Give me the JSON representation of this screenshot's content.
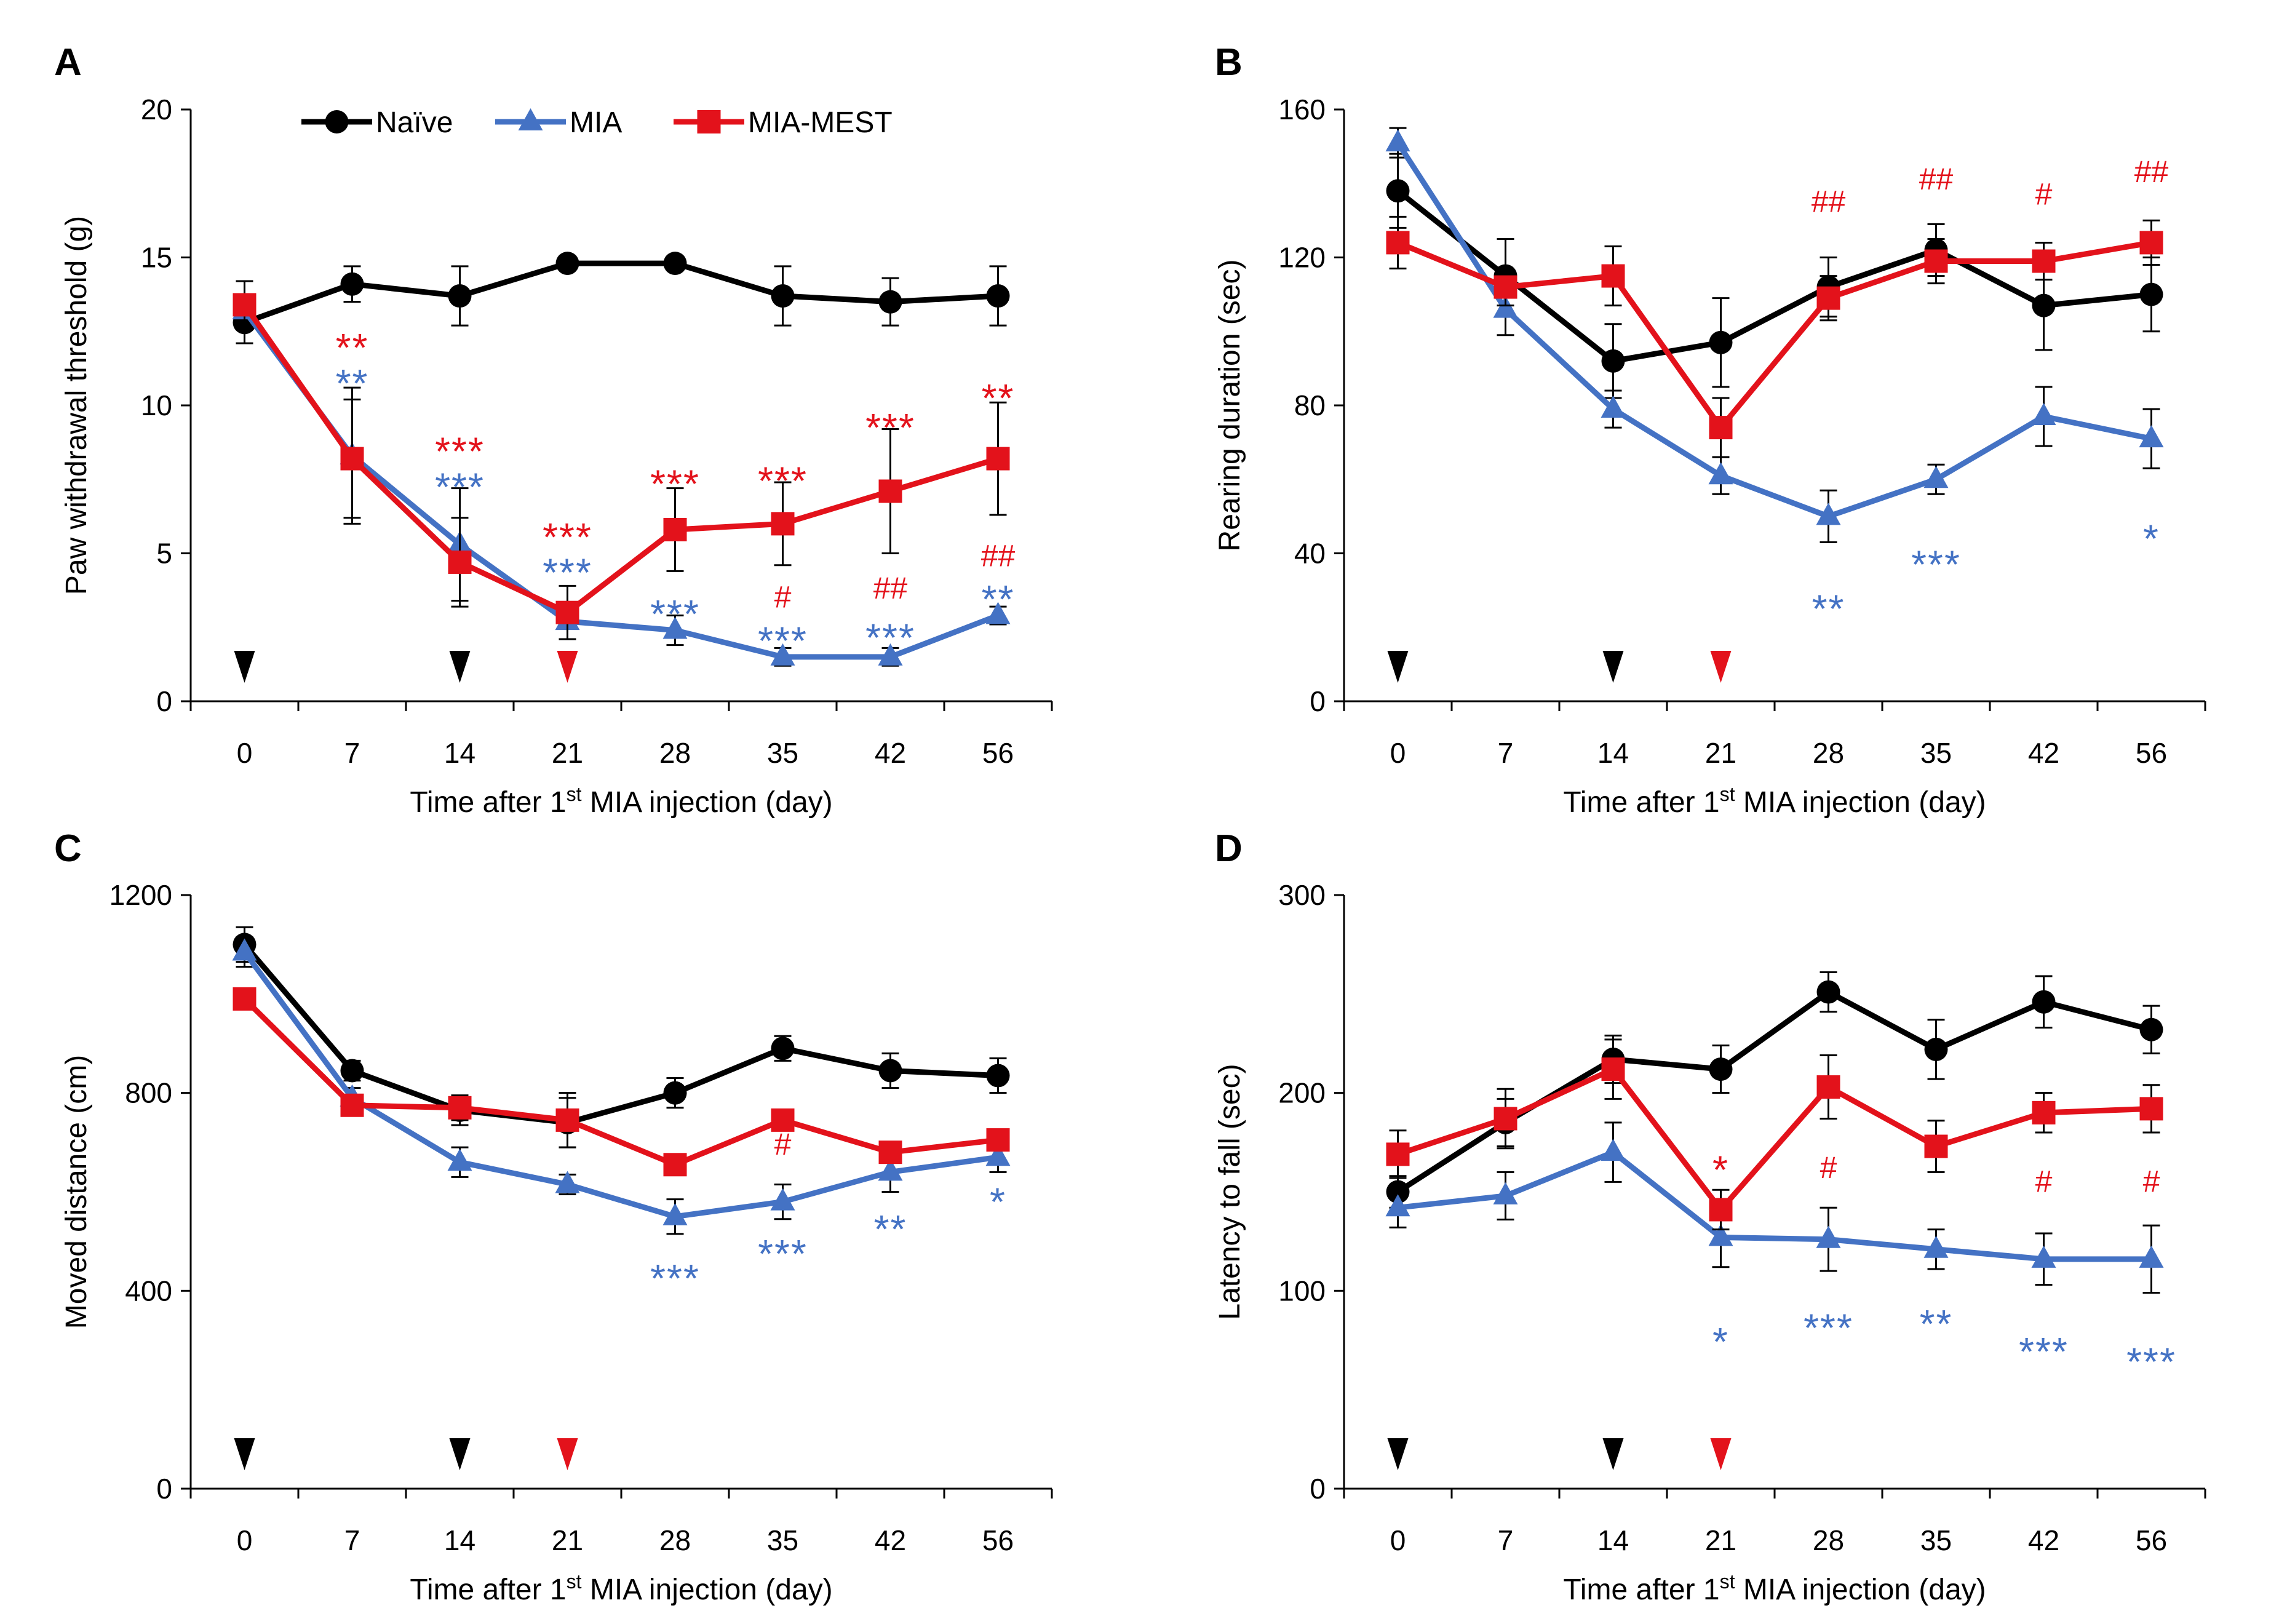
{
  "figure": {
    "legend": [
      {
        "name": "Naïve",
        "color": "#000000",
        "marker": "circle"
      },
      {
        "name": "MIA",
        "color": "#4472C4",
        "marker": "triangle"
      },
      {
        "name": "MIA-MEST",
        "color": "#E3121B",
        "marker": "square"
      }
    ],
    "colors": {
      "naive": "#000000",
      "mia": "#4472C4",
      "mest": "#E3121B"
    }
  },
  "chart_data": [
    {
      "panel": "A",
      "type": "line",
      "categories": [
        "0",
        "7",
        "14",
        "21",
        "28",
        "35",
        "42",
        "56"
      ],
      "ylabel": "Paw withdrawal threshold (g)",
      "xlabel": "Time after 1st MIA injection (day)",
      "xlabel_parts": {
        "pre": "Time after 1",
        "sup": "st",
        "post": " MIA injection (day)"
      },
      "ylim": [
        0,
        20
      ],
      "yticks": [
        0,
        5,
        10,
        15,
        20
      ],
      "show_legend": true,
      "series": [
        {
          "name": "Naïve",
          "values": [
            12.8,
            14.1,
            13.7,
            14.8,
            14.8,
            13.7,
            13.5,
            13.7
          ],
          "errors": [
            0.7,
            0.6,
            1.0,
            0.2,
            0.2,
            1.0,
            0.8,
            1.0
          ]
        },
        {
          "name": "MIA",
          "values": [
            13.2,
            8.3,
            5.3,
            2.7,
            2.4,
            1.5,
            1.5,
            2.9
          ],
          "errors": [
            0.5,
            2.3,
            1.9,
            0.6,
            0.5,
            0.3,
            0.3,
            0.3
          ]
        },
        {
          "name": "MIA-MEST",
          "values": [
            13.4,
            8.2,
            4.7,
            3.0,
            5.8,
            6.0,
            7.1,
            8.2
          ],
          "errors": [
            0.8,
            2.0,
            1.5,
            0.9,
            1.4,
            1.4,
            2.1,
            1.9
          ]
        }
      ],
      "arrowheads": [
        {
          "category": "0",
          "series": "Naïve"
        },
        {
          "category": "14",
          "series": "Naïve"
        },
        {
          "category": "21",
          "series": "MIA-MEST"
        }
      ],
      "annotations": [
        {
          "category": "7",
          "text": "**",
          "series": "MIA-MEST",
          "y": 12.2
        },
        {
          "category": "7",
          "text": "**",
          "series": "MIA",
          "y": 11.0
        },
        {
          "category": "14",
          "text": "***",
          "series": "MIA-MEST",
          "y": 8.7
        },
        {
          "category": "14",
          "text": "***",
          "series": "MIA",
          "y": 7.5
        },
        {
          "category": "21",
          "text": "***",
          "series": "MIA-MEST",
          "y": 5.8
        },
        {
          "category": "21",
          "text": "***",
          "series": "MIA",
          "y": 4.6
        },
        {
          "category": "28",
          "text": "***",
          "series": "MIA-MEST",
          "y": 7.6
        },
        {
          "category": "28",
          "text": "***",
          "series": "MIA",
          "y": 3.2
        },
        {
          "category": "35",
          "text": "***",
          "series": "MIA-MEST",
          "y": 7.7
        },
        {
          "category": "35",
          "text": "#",
          "series": "MIA-MEST",
          "y": 3.5
        },
        {
          "category": "35",
          "text": "***",
          "series": "MIA",
          "y": 2.3
        },
        {
          "category": "42",
          "text": "***",
          "series": "MIA-MEST",
          "y": 9.5
        },
        {
          "category": "42",
          "text": "##",
          "series": "MIA-MEST",
          "y": 3.8
        },
        {
          "category": "42",
          "text": "***",
          "series": "MIA",
          "y": 2.4
        },
        {
          "category": "56",
          "text": "**",
          "series": "MIA-MEST",
          "y": 10.5
        },
        {
          "category": "56",
          "text": "##",
          "series": "MIA-MEST",
          "y": 4.9
        },
        {
          "category": "56",
          "text": "**",
          "series": "MIA",
          "y": 3.7
        }
      ]
    },
    {
      "panel": "B",
      "type": "line",
      "categories": [
        "0",
        "7",
        "14",
        "21",
        "28",
        "35",
        "42",
        "56"
      ],
      "ylabel": "Rearing duration (sec)",
      "xlabel": "Time after 1st MIA injection (day)",
      "xlabel_parts": {
        "pre": "Time after 1",
        "sup": "st",
        "post": " MIA injection (day)"
      },
      "ylim": [
        0,
        160
      ],
      "yticks": [
        0,
        40,
        80,
        120,
        160
      ],
      "show_legend": false,
      "series": [
        {
          "name": "Naïve",
          "values": [
            138,
            115,
            92,
            97,
            112,
            122,
            107,
            110
          ],
          "errors": [
            10,
            10,
            10,
            12,
            8,
            7,
            12,
            10
          ]
        },
        {
          "name": "MIA",
          "values": [
            151,
            106,
            79,
            61,
            50,
            60,
            77,
            71
          ],
          "errors": [
            4,
            7,
            5,
            5,
            7,
            4,
            8,
            8
          ]
        },
        {
          "name": "MIA-MEST",
          "values": [
            124,
            112,
            115,
            74,
            109,
            119,
            119,
            124
          ],
          "errors": [
            7,
            5,
            8,
            8,
            6,
            6,
            5,
            6
          ]
        }
      ],
      "arrowheads": [
        {
          "category": "0",
          "series": "Naïve"
        },
        {
          "category": "14",
          "series": "Naïve"
        },
        {
          "category": "21",
          "series": "MIA-MEST"
        }
      ],
      "annotations": [
        {
          "category": "28",
          "text": "##",
          "series": "MIA-MEST",
          "y": 135
        },
        {
          "category": "35",
          "text": "##",
          "series": "MIA-MEST",
          "y": 141
        },
        {
          "category": "42",
          "text": "#",
          "series": "MIA-MEST",
          "y": 137
        },
        {
          "category": "56",
          "text": "##",
          "series": "MIA-MEST",
          "y": 143
        },
        {
          "category": "28",
          "text": "**",
          "series": "MIA",
          "y": 27
        },
        {
          "category": "35",
          "text": "***",
          "series": "MIA",
          "y": 39
        },
        {
          "category": "56",
          "text": "*",
          "series": "MIA",
          "y": 46
        }
      ]
    },
    {
      "panel": "C",
      "type": "line",
      "categories": [
        "0",
        "7",
        "14",
        "21",
        "28",
        "35",
        "42",
        "56"
      ],
      "ylabel": "Moved distance (cm)",
      "xlabel": "Time after 1st MIA injection (day)",
      "xlabel_parts": {
        "pre": "Time after 1",
        "sup": "st",
        "post": " MIA injection (day)"
      },
      "ylim": [
        0,
        1200
      ],
      "yticks": [
        0,
        400,
        800,
        1200
      ],
      "show_legend": false,
      "series": [
        {
          "name": "Naïve",
          "values": [
            1100,
            845,
            765,
            740,
            800,
            890,
            845,
            835
          ],
          "errors": [
            35,
            20,
            30,
            50,
            30,
            25,
            35,
            35
          ]
        },
        {
          "name": "MIA",
          "values": [
            1085,
            790,
            660,
            615,
            550,
            580,
            640,
            670
          ],
          "errors": [
            30,
            20,
            30,
            20,
            35,
            35,
            40,
            30
          ]
        },
        {
          "name": "MIA-MEST",
          "values": [
            990,
            775,
            770,
            745,
            655,
            745,
            680,
            705
          ],
          "errors": [
            20,
            20,
            25,
            55,
            20,
            20,
            20,
            20
          ]
        }
      ],
      "arrowheads": [
        {
          "category": "0",
          "series": "Naïve"
        },
        {
          "category": "14",
          "series": "Naïve"
        },
        {
          "category": "21",
          "series": "MIA-MEST"
        }
      ],
      "annotations": [
        {
          "category": "35",
          "text": "#",
          "series": "MIA-MEST",
          "y": 695
        },
        {
          "category": "28",
          "text": "***",
          "series": "MIA",
          "y": 440
        },
        {
          "category": "35",
          "text": "***",
          "series": "MIA",
          "y": 490
        },
        {
          "category": "42",
          "text": "**",
          "series": "MIA",
          "y": 540
        },
        {
          "category": "56",
          "text": "*",
          "series": "MIA",
          "y": 595
        }
      ]
    },
    {
      "panel": "D",
      "type": "line",
      "categories": [
        "0",
        "7",
        "14",
        "21",
        "28",
        "35",
        "42",
        "56"
      ],
      "ylabel": "Latency to fall (sec)",
      "xlabel": "Time after 1st MIA injection (day)",
      "xlabel_parts": {
        "pre": "Time after 1",
        "sup": "st",
        "post": " MIA injection (day)"
      },
      "ylim": [
        0,
        300
      ],
      "yticks": [
        0,
        100,
        200,
        300
      ],
      "show_legend": false,
      "series": [
        {
          "name": "Naïve",
          "values": [
            150,
            185,
            217,
            212,
            251,
            222,
            246,
            232
          ],
          "errors": [
            8,
            12,
            12,
            12,
            10,
            15,
            13,
            12
          ]
        },
        {
          "name": "MIA",
          "values": [
            142,
            148,
            170,
            127,
            126,
            121,
            116,
            116
          ],
          "errors": [
            10,
            12,
            15,
            15,
            16,
            10,
            13,
            17
          ]
        },
        {
          "name": "MIA-MEST",
          "values": [
            169,
            187,
            212,
            141,
            203,
            173,
            190,
            192
          ],
          "errors": [
            12,
            15,
            15,
            10,
            16,
            13,
            10,
            12
          ]
        }
      ],
      "arrowheads": [
        {
          "category": "0",
          "series": "Naïve"
        },
        {
          "category": "14",
          "series": "Naïve"
        },
        {
          "category": "21",
          "series": "MIA-MEST"
        }
      ],
      "annotations": [
        {
          "category": "21",
          "text": "*",
          "series": "MIA-MEST",
          "y": 165
        },
        {
          "category": "28",
          "text": "#",
          "series": "MIA-MEST",
          "y": 162
        },
        {
          "category": "42",
          "text": "#",
          "series": "MIA-MEST",
          "y": 155
        },
        {
          "category": "56",
          "text": "#",
          "series": "MIA-MEST",
          "y": 155
        },
        {
          "category": "21",
          "text": "*",
          "series": "MIA",
          "y": 78
        },
        {
          "category": "28",
          "text": "***",
          "series": "MIA",
          "y": 85
        },
        {
          "category": "35",
          "text": "**",
          "series": "MIA",
          "y": 87
        },
        {
          "category": "42",
          "text": "***",
          "series": "MIA",
          "y": 73
        },
        {
          "category": "56",
          "text": "***",
          "series": "MIA",
          "y": 68
        }
      ]
    }
  ]
}
